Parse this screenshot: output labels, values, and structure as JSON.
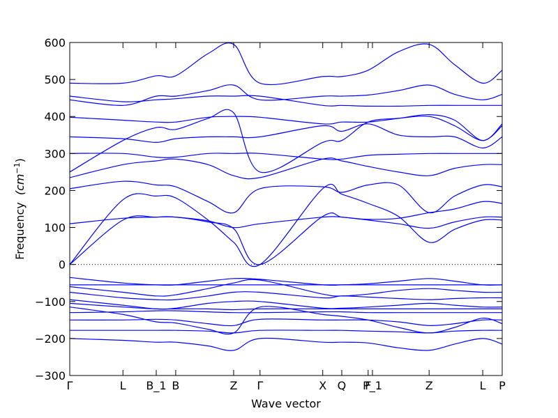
{
  "chart_data": {
    "type": "line",
    "xlabel": "Wave vector",
    "ylabel": "Frequency",
    "ylabel_unit_math": "(cm",
    "ylabel_unit_sup": "−1",
    "ylabel_unit_close": ")",
    "ylim": [
      -300,
      600
    ],
    "yticks": [
      -300,
      -200,
      -100,
      0,
      100,
      200,
      300,
      400,
      500,
      600
    ],
    "ytick_labels": [
      "−300",
      "−200",
      "−100",
      "0",
      "100",
      "200",
      "300",
      "400",
      "500",
      "600"
    ],
    "xlim": [
      0,
      1
    ],
    "kpoints": [
      {
        "label": "Γ",
        "x": 0.0
      },
      {
        "label": "L",
        "x": 0.123
      },
      {
        "label": "B_1",
        "x": 0.2
      },
      {
        "label": "B",
        "x": 0.245
      },
      {
        "label": "Z",
        "x": 0.379
      },
      {
        "label": "Γ",
        "x": 0.44
      },
      {
        "label": "X",
        "x": 0.585
      },
      {
        "label": "Q",
        "x": 0.629
      },
      {
        "label": "F",
        "x": 0.69
      },
      {
        "label": "P_1",
        "x": 0.7
      },
      {
        "label": "Z",
        "x": 0.831
      },
      {
        "label": "L",
        "x": 0.955
      },
      {
        "label": "P",
        "x": 1.0
      }
    ],
    "zero_line": true,
    "grid": false,
    "line_color": "#0000ff",
    "series": [
      {
        "x": [
          0,
          0.123,
          0.2,
          0.245,
          0.32,
          0.379,
          0.44,
          0.585,
          0.629,
          0.69,
          0.76,
          0.831,
          0.89,
          0.955,
          1.0
        ],
        "y": [
          0,
          175,
          185,
          180,
          120,
          60,
          0,
          205,
          190,
          165,
          130,
          60,
          95,
          120,
          120
        ]
      },
      {
        "x": [
          0,
          0.123,
          0.2,
          0.245,
          0.32,
          0.379,
          0.44,
          0.585,
          0.629,
          0.69,
          0.76,
          0.831,
          0.89,
          0.955,
          1.0
        ],
        "y": [
          0,
          120,
          128,
          128,
          115,
          97,
          0,
          130,
          128,
          120,
          110,
          98,
          115,
          128,
          128
        ]
      },
      {
        "x": [
          0,
          0.123,
          0.2,
          0.245,
          0.32,
          0.379,
          0.44,
          0.585,
          0.629,
          0.69,
          0.76,
          0.831,
          0.89,
          0.955,
          1.0
        ],
        "y": [
          110,
          125,
          128,
          128,
          118,
          100,
          110,
          128,
          128,
          122,
          125,
          140,
          150,
          170,
          165
        ]
      },
      {
        "x": [
          0,
          0.123,
          0.2,
          0.245,
          0.32,
          0.379,
          0.44,
          0.585,
          0.629,
          0.69,
          0.76,
          0.831,
          0.89,
          0.955,
          1.0
        ],
        "y": [
          205,
          225,
          215,
          210,
          170,
          140,
          205,
          210,
          195,
          215,
          215,
          140,
          185,
          215,
          210
        ]
      },
      {
        "x": [
          0,
          0.123,
          0.2,
          0.245,
          0.32,
          0.379,
          0.44,
          0.585,
          0.629,
          0.69,
          0.76,
          0.831,
          0.89,
          0.955,
          1.0
        ],
        "y": [
          235,
          270,
          280,
          285,
          270,
          240,
          235,
          285,
          280,
          265,
          250,
          240,
          260,
          270,
          270
        ]
      },
      {
        "x": [
          0,
          0.123,
          0.2,
          0.245,
          0.32,
          0.379,
          0.44,
          0.585,
          0.629,
          0.69,
          0.76,
          0.831,
          0.89,
          0.955,
          1.0
        ],
        "y": [
          250,
          335,
          370,
          365,
          395,
          410,
          250,
          330,
          335,
          385,
          395,
          400,
          375,
          335,
          375
        ]
      },
      {
        "x": [
          0,
          0.123,
          0.2,
          0.245,
          0.32,
          0.379,
          0.44,
          0.585,
          0.629,
          0.69,
          0.76,
          0.831,
          0.89,
          0.955,
          1.0
        ],
        "y": [
          300,
          300,
          290,
          290,
          300,
          300,
          300,
          285,
          285,
          295,
          298,
          300,
          300,
          300,
          300
        ]
      },
      {
        "x": [
          0,
          0.123,
          0.2,
          0.245,
          0.32,
          0.379,
          0.44,
          0.585,
          0.629,
          0.69,
          0.76,
          0.831,
          0.89,
          0.955,
          1.0
        ],
        "y": [
          345,
          340,
          330,
          340,
          345,
          345,
          345,
          375,
          360,
          380,
          350,
          345,
          345,
          315,
          345
        ]
      },
      {
        "x": [
          0,
          0.123,
          0.2,
          0.245,
          0.32,
          0.379,
          0.44,
          0.585,
          0.629,
          0.69,
          0.76,
          0.831,
          0.89,
          0.955,
          1.0
        ],
        "y": [
          398,
          390,
          385,
          385,
          398,
          400,
          398,
          380,
          385,
          385,
          395,
          405,
          390,
          335,
          380
        ]
      },
      {
        "x": [
          0,
          0.123,
          0.2,
          0.245,
          0.32,
          0.379,
          0.44,
          0.585,
          0.629,
          0.69,
          0.76,
          0.831,
          0.89,
          0.955,
          1.0
        ],
        "y": [
          455,
          440,
          445,
          448,
          455,
          455,
          455,
          430,
          430,
          428,
          428,
          430,
          430,
          430,
          430
        ]
      },
      {
        "x": [
          0,
          0.123,
          0.2,
          0.245,
          0.32,
          0.379,
          0.44,
          0.585,
          0.629,
          0.69,
          0.76,
          0.831,
          0.89,
          0.955,
          1.0
        ],
        "y": [
          445,
          430,
          455,
          455,
          470,
          485,
          445,
          455,
          455,
          458,
          470,
          485,
          460,
          445,
          460
        ]
      },
      {
        "x": [
          0,
          0.123,
          0.2,
          0.245,
          0.32,
          0.379,
          0.44,
          0.585,
          0.629,
          0.69,
          0.76,
          0.831,
          0.89,
          0.955,
          1.0
        ],
        "y": [
          490,
          490,
          510,
          510,
          570,
          595,
          490,
          508,
          508,
          525,
          575,
          595,
          540,
          490,
          525
        ]
      },
      {
        "x": [
          0,
          0.123,
          0.2,
          0.245,
          0.32,
          0.379,
          0.44,
          0.585,
          0.629,
          0.69,
          0.76,
          0.831,
          0.89,
          0.955,
          1.0
        ],
        "y": [
          -35,
          -50,
          -55,
          -55,
          -45,
          -38,
          -40,
          -55,
          -55,
          -52,
          -45,
          -38,
          -45,
          -55,
          -55
        ]
      },
      {
        "x": [
          0,
          0.123,
          0.2,
          0.245,
          0.32,
          0.379,
          0.44,
          0.585,
          0.629,
          0.69,
          0.76,
          0.831,
          0.89,
          0.955,
          1.0
        ],
        "y": [
          -55,
          -55,
          -55,
          -55,
          -55,
          -55,
          -55,
          -55,
          -55,
          -55,
          -55,
          -55,
          -55,
          -55,
          -55
        ]
      },
      {
        "x": [
          0,
          0.123,
          0.2,
          0.245,
          0.32,
          0.379,
          0.44,
          0.585,
          0.629,
          0.69,
          0.76,
          0.831,
          0.89,
          0.955,
          1.0
        ],
        "y": [
          -60,
          -75,
          -85,
          -82,
          -65,
          -50,
          -42,
          -80,
          -85,
          -80,
          -70,
          -65,
          -70,
          -75,
          -75
        ]
      },
      {
        "x": [
          0,
          0.123,
          0.2,
          0.245,
          0.32,
          0.379,
          0.44,
          0.585,
          0.629,
          0.69,
          0.76,
          0.831,
          0.89,
          0.955,
          1.0
        ],
        "y": [
          -75,
          -90,
          -95,
          -95,
          -85,
          -75,
          -75,
          -90,
          -85,
          -88,
          -92,
          -95,
          -92,
          -90,
          -90
        ]
      },
      {
        "x": [
          0,
          0.123,
          0.2,
          0.245,
          0.32,
          0.379,
          0.44,
          0.585,
          0.629,
          0.69,
          0.76,
          0.831,
          0.89,
          0.955,
          1.0
        ],
        "y": [
          -95,
          -110,
          -120,
          -118,
          -105,
          -100,
          -100,
          -118,
          -118,
          -115,
          -110,
          -105,
          -110,
          -115,
          -115
        ]
      },
      {
        "x": [
          0,
          0.123,
          0.2,
          0.245,
          0.32,
          0.379,
          0.44,
          0.585,
          0.629,
          0.69,
          0.76,
          0.831,
          0.89,
          0.955,
          1.0
        ],
        "y": [
          -105,
          -115,
          -120,
          -120,
          -120,
          -122,
          -120,
          -120,
          -120,
          -120,
          -120,
          -120,
          -120,
          -120,
          -120
        ]
      },
      {
        "x": [
          0,
          0.123,
          0.2,
          0.245,
          0.32,
          0.379,
          0.44,
          0.585,
          0.629,
          0.69,
          0.76,
          0.831,
          0.89,
          0.955,
          1.0
        ],
        "y": [
          -115,
          -135,
          -155,
          -158,
          -175,
          -185,
          -115,
          -135,
          -140,
          -150,
          -170,
          -185,
          -170,
          -145,
          -160
        ]
      },
      {
        "x": [
          0,
          0.123,
          0.2,
          0.245,
          0.32,
          0.379,
          0.44,
          0.585,
          0.629,
          0.69,
          0.76,
          0.831,
          0.89,
          0.955,
          1.0
        ],
        "y": [
          -130,
          -128,
          -125,
          -125,
          -128,
          -130,
          -130,
          -128,
          -128,
          -130,
          -130,
          -130,
          -130,
          -130,
          -130
        ]
      },
      {
        "x": [
          0,
          0.123,
          0.2,
          0.245,
          0.32,
          0.379,
          0.44,
          0.585,
          0.629,
          0.69,
          0.76,
          0.831,
          0.89,
          0.955,
          1.0
        ],
        "y": [
          -150,
          -150,
          -148,
          -150,
          -160,
          -165,
          -148,
          -150,
          -150,
          -150,
          -155,
          -165,
          -160,
          -150,
          -150
        ]
      },
      {
        "x": [
          0,
          0.123,
          0.2,
          0.245,
          0.32,
          0.379,
          0.44,
          0.585,
          0.629,
          0.69,
          0.76,
          0.831,
          0.89,
          0.955,
          1.0
        ],
        "y": [
          -178,
          -178,
          -178,
          -178,
          -180,
          -185,
          -178,
          -178,
          -178,
          -180,
          -182,
          -185,
          -180,
          -178,
          -178
        ]
      },
      {
        "x": [
          0,
          0.123,
          0.2,
          0.245,
          0.32,
          0.379,
          0.44,
          0.585,
          0.629,
          0.69,
          0.76,
          0.831,
          0.89,
          0.955,
          1.0
        ],
        "y": [
          -200,
          -205,
          -210,
          -210,
          -220,
          -232,
          -200,
          -210,
          -210,
          -212,
          -225,
          -232,
          -215,
          -200,
          -215
        ]
      }
    ]
  }
}
